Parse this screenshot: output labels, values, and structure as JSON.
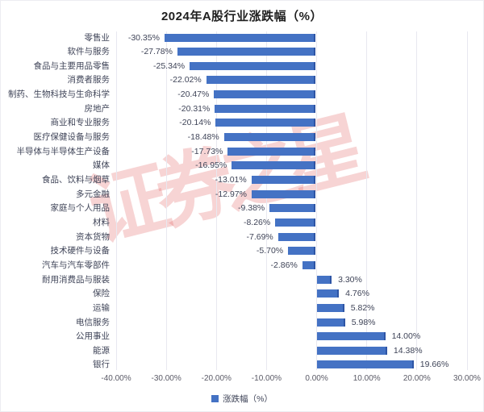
{
  "title": "2024年A股行业涨跌幅（%）",
  "watermark_text": "证券之星",
  "legend": {
    "label": "涨跌幅（%）",
    "swatch_color": "#4472C4"
  },
  "colors": {
    "bar": "#4472C4",
    "bar_edge": "#2E55A5",
    "gridline": "#E8E8F0",
    "category_label": "#3F4458",
    "tick_label": "#5A5A66",
    "title": "#1F1F1F",
    "watermark": "rgba(224,88,88,0.26)"
  },
  "chart_data": {
    "type": "bar",
    "orientation": "horizontal",
    "title": "2024年A股行业涨跌幅（%）",
    "categories": [
      "零售业",
      "软件与服务",
      "食品与主要用品零售",
      "消费者服务",
      "制药、生物科技与生命科学",
      "房地产",
      "商业和专业服务",
      "医疗保健设备与服务",
      "半导体与半导体生产设备",
      "媒体",
      "食品、饮料与烟草",
      "多元金融",
      "家庭与个人用品",
      "材料",
      "资本货物",
      "技术硬件与设备",
      "汽车与汽车零部件",
      "耐用消费品与服装",
      "保险",
      "运输",
      "电信服务",
      "公用事业",
      "能源",
      "银行"
    ],
    "values": [
      -30.35,
      -27.78,
      -25.34,
      -22.02,
      -20.47,
      -20.31,
      -20.14,
      -18.48,
      -17.73,
      -16.95,
      -13.01,
      -12.97,
      -9.38,
      -8.26,
      -7.69,
      -5.7,
      -2.86,
      3.3,
      4.76,
      5.82,
      5.98,
      14.0,
      14.38,
      19.66
    ],
    "value_labels": [
      "-30.35%",
      "-27.78%",
      "-25.34%",
      "-22.02%",
      "-20.47%",
      "-20.31%",
      "-20.14%",
      "-18.48%",
      "-17.73%",
      "-16.95%",
      "-13.01%",
      "-12.97%",
      "-9.38%",
      "-8.26%",
      "-7.69%",
      "-5.70%",
      "-2.86%",
      "3.30%",
      "4.76%",
      "5.82%",
      "5.98%",
      "14.00%",
      "14.38%",
      "19.66%"
    ],
    "xlabel": "",
    "ylabel": "",
    "xlim": [
      -40,
      30
    ],
    "x_ticks": [
      -40,
      -30,
      -20,
      -10,
      0,
      10,
      20,
      30
    ],
    "x_tick_labels": [
      "-40.00%",
      "-30.00%",
      "-20.00%",
      "-10.00%",
      "0.00%",
      "10.00%",
      "20.00%",
      "30.00%"
    ],
    "legend_entries": [
      "涨跌幅（%）"
    ],
    "legend_position": "bottom",
    "grid": "vertical"
  }
}
